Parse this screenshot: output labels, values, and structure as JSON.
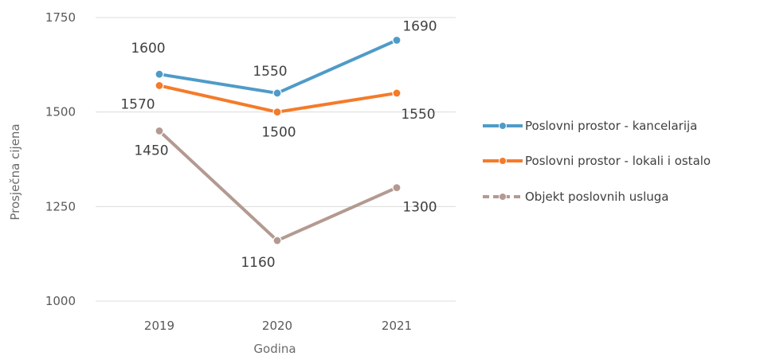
{
  "chart_data": {
    "type": "line",
    "categories": [
      "2019",
      "2020",
      "2021"
    ],
    "series": [
      {
        "name": "Poslovni prostor - kancelarija",
        "values": [
          1600,
          1550,
          1690
        ],
        "labels": [
          "1600",
          "1550",
          "1690"
        ],
        "color": "#4f9bc8"
      },
      {
        "name": "Poslovni prostor - lokali i ostalo",
        "values": [
          1570,
          1500,
          1550
        ],
        "labels": [
          "1570",
          "1500",
          "1550"
        ],
        "color": "#f47b2a"
      },
      {
        "name": "Objekt poslovnih usluga",
        "values": [
          1450,
          1160,
          1300
        ],
        "labels": [
          "1450",
          "1160",
          "1300"
        ],
        "color": "#b39a91"
      }
    ],
    "title": "",
    "xlabel": "Godina",
    "ylabel": "Prosječna cijena",
    "ylim": [
      1000,
      1750
    ],
    "yticks": [
      "1000",
      "1250",
      "1500",
      "1750"
    ],
    "grid": true,
    "legend": "right"
  }
}
